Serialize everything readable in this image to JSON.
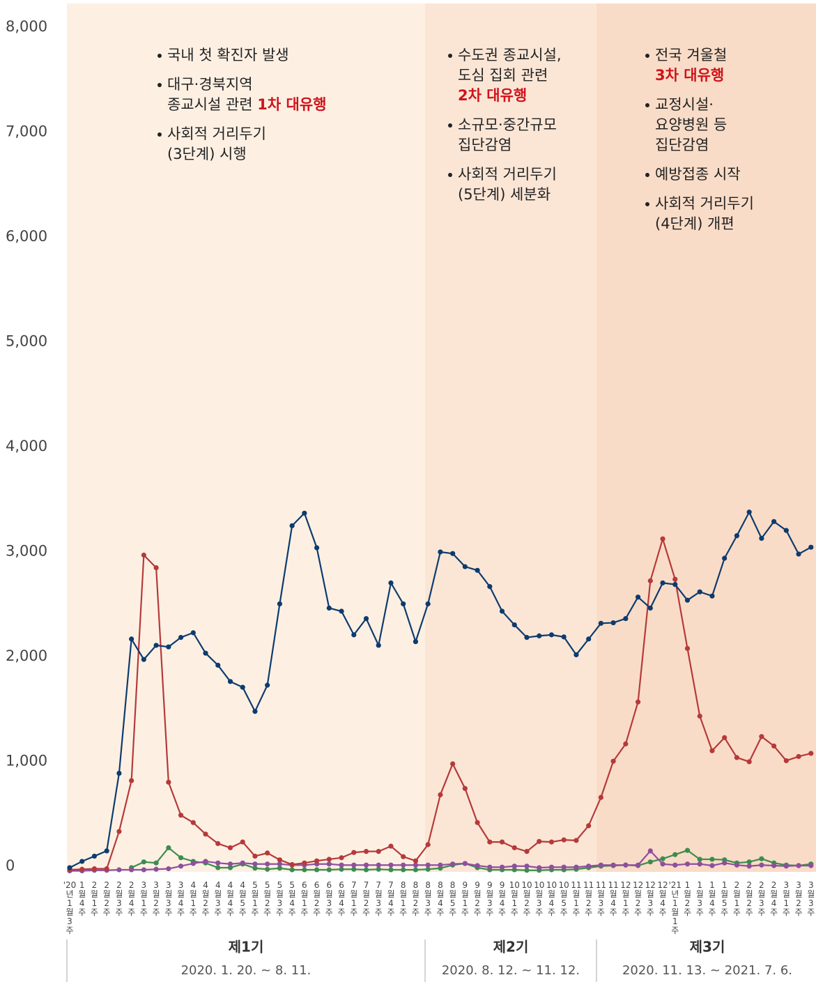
{
  "chart_data": {
    "type": "line",
    "categories": [
      "'20년1월3주",
      "1월4주",
      "2월1주",
      "2월2주",
      "2월3주",
      "2월4주",
      "3월1주",
      "3월2주",
      "3월3주",
      "3월4주",
      "4월1주",
      "4월2주",
      "4월3주",
      "4월4주",
      "4월5주",
      "5월1주",
      "5월2주",
      "5월3주",
      "5월4주",
      "6월1주",
      "6월2주",
      "6월3주",
      "6월4주",
      "7월1주",
      "7월2주",
      "7월3주",
      "7월4주",
      "8월1주",
      "8월2주",
      "8월3주",
      "8월4주",
      "8월5주",
      "9월1주",
      "9월2주",
      "9월3주",
      "9월4주",
      "10월1주",
      "10월2주",
      "10월3주",
      "10월4주",
      "10월5주",
      "11월1주",
      "11월2주",
      "11월3주",
      "11월4주",
      "12월1주",
      "12월2주",
      "12월3주",
      "12월4주",
      "'21년1월1주",
      "1월2주",
      "1월3주",
      "1월4주",
      "1월5주",
      "2월1주",
      "2월2주",
      "2월3주",
      "2월4주",
      "3월1주",
      "3월2주",
      "3월3주"
    ],
    "series": [
      {
        "color": "#0d3b6e",
        "values": [
          40,
          100,
          150,
          200,
          940,
          2220,
          2025,
          2160,
          2145,
          2235,
          2280,
          2085,
          1970,
          1815,
          1760,
          1530,
          1780,
          2555,
          3300,
          3420,
          3090,
          2515,
          2485,
          2260,
          2415,
          2160,
          2755,
          2555,
          2195,
          2555,
          3050,
          3035,
          2910,
          2875,
          2720,
          2485,
          2355,
          2235,
          2250,
          2260,
          2240,
          2070,
          2220,
          2370,
          2375,
          2415,
          2620,
          2515,
          2755,
          2740,
          2590,
          2670,
          2630,
          2990,
          3205,
          3430,
          3180,
          3340,
          3255,
          3030,
          3095
        ]
      },
      {
        "color": "#b53a3a",
        "values": [
          20,
          25,
          30,
          30,
          385,
          870,
          3020,
          2900,
          855,
          540,
          470,
          360,
          270,
          230,
          285,
          150,
          180,
          115,
          70,
          85,
          105,
          120,
          135,
          185,
          195,
          195,
          245,
          145,
          105,
          260,
          735,
          1030,
          795,
          470,
          285,
          285,
          230,
          195,
          290,
          285,
          305,
          300,
          440,
          710,
          1055,
          1220,
          1620,
          2775,
          3175,
          2790,
          2130,
          1485,
          1155,
          1280,
          1090,
          1050,
          1290,
          1200,
          1060,
          1100,
          1130
        ]
      },
      {
        "color": "#3d8c4e",
        "values": [
          null,
          null,
          null,
          null,
          null,
          40,
          95,
          85,
          230,
          135,
          100,
          85,
          40,
          40,
          75,
          35,
          25,
          35,
          20,
          20,
          20,
          20,
          25,
          25,
          20,
          25,
          20,
          20,
          20,
          25,
          35,
          65,
          80,
          40,
          20,
          20,
          20,
          15,
          15,
          20,
          20,
          25,
          40,
          55,
          60,
          65,
          60,
          95,
          125,
          165,
          205,
          120,
          120,
          115,
          85,
          95,
          125,
          85,
          65,
          60,
          75
        ]
      },
      {
        "color": "#8e4f9e",
        "values": [
          10,
          10,
          15,
          15,
          20,
          20,
          20,
          25,
          30,
          55,
          80,
          100,
          85,
          75,
          85,
          75,
          75,
          75,
          65,
          65,
          75,
          75,
          65,
          65,
          65,
          65,
          65,
          65,
          65,
          65,
          65,
          75,
          80,
          60,
          45,
          45,
          55,
          55,
          40,
          45,
          45,
          45,
          55,
          65,
          65,
          65,
          65,
          200,
          75,
          65,
          75,
          75,
          60,
          85,
          65,
          55,
          65,
          60,
          55,
          60,
          60
        ]
      }
    ],
    "ylim": [
      0,
      8000
    ],
    "yticks": [
      0,
      {
        "value": 1000,
        "label": "1,000"
      },
      {
        "value": 2000,
        "label": "2,000"
      },
      {
        "value": 3000,
        "label": "3,000"
      },
      {
        "value": 4000,
        "label": "4,000"
      },
      {
        "value": 5000,
        "label": "5,000"
      },
      {
        "value": 6000,
        "label": "6,000"
      },
      {
        "value": 7000,
        "label": "7,000"
      },
      {
        "value": 8000,
        "label": "8,000"
      }
    ],
    "phases": [
      {
        "name": "제1기",
        "period": "2020. 1. 20. ~ 8. 11.",
        "color": "#fdf0e3",
        "notes": [
          [
            [
              {
                "text": "국내 첫 확진자 발생"
              }
            ]
          ],
          [
            [
              {
                "text": "대구·경북지역"
              }
            ],
            [
              {
                "text": "종교시설 관련 "
              },
              {
                "text": "1차 대유행",
                "emphasis": true
              }
            ]
          ],
          [
            [
              {
                "text": "사회적 거리두기"
              }
            ],
            [
              {
                "text": "(3단계) 시행"
              }
            ]
          ]
        ]
      },
      {
        "name": "제2기",
        "period": "2020. 8. 12. ~ 11. 12.",
        "color": "#fbe6d6",
        "notes": [
          [
            [
              {
                "text": "수도권 종교시설,"
              }
            ],
            [
              {
                "text": "도심 집회 관련"
              }
            ],
            [
              {
                "text": "2차 대유행",
                "emphasis": true
              }
            ]
          ],
          [
            [
              {
                "text": "소규모·중간규모"
              }
            ],
            [
              {
                "text": "집단감염"
              }
            ]
          ],
          [
            [
              {
                "text": "사회적 거리두기"
              }
            ],
            [
              {
                "text": "(5단계) 세분화"
              }
            ]
          ]
        ]
      },
      {
        "name": "제3기",
        "period": "2020. 11. 13. ~ 2021. 7. 6.",
        "color": "#f9dcc7",
        "notes": [
          [
            [
              {
                "text": "전국 겨울철"
              }
            ],
            [
              {
                "text": "3차 대유행",
                "emphasis": true
              }
            ]
          ],
          [
            [
              {
                "text": "교정시설·"
              }
            ],
            [
              {
                "text": "요양병원 등"
              }
            ],
            [
              {
                "text": "집단감염"
              }
            ]
          ],
          [
            [
              {
                "text": "예방접종 시작"
              }
            ]
          ],
          [
            [
              {
                "text": "사회적 거리두기"
              }
            ],
            [
              {
                "text": "(4단계) 개편"
              }
            ]
          ]
        ]
      }
    ]
  }
}
